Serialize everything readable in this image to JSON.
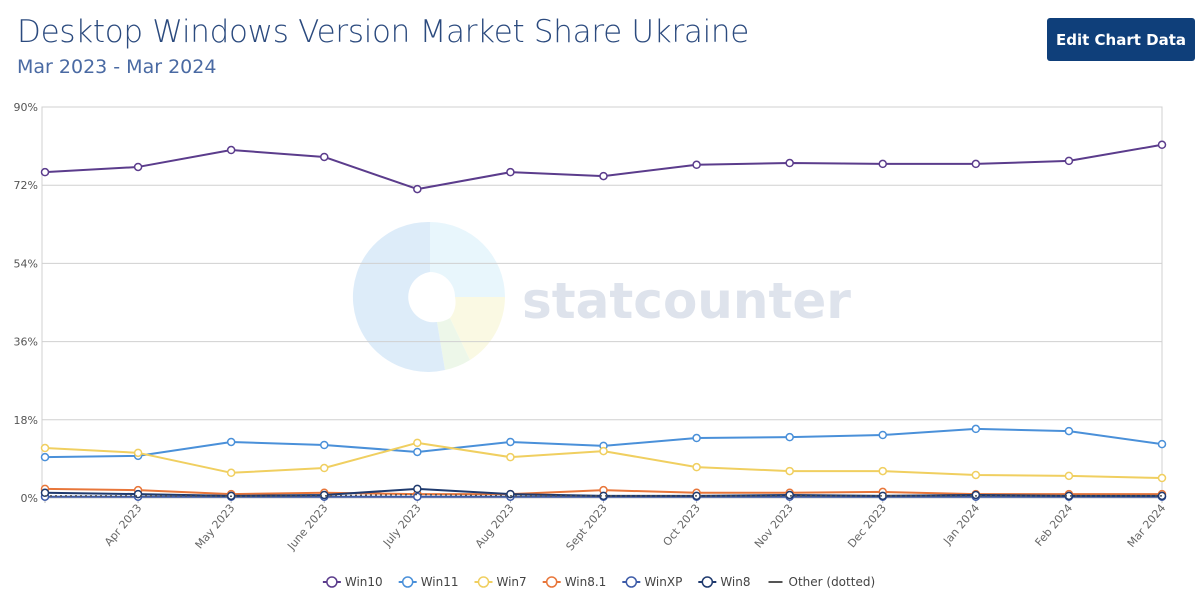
{
  "chart_data": {
    "type": "line",
    "title": "Desktop Windows Version Market Share Ukraine",
    "subtitle": "Mar 2023 - Mar 2024",
    "button": "Edit Chart Data",
    "watermark": "statcounter",
    "categories": [
      null,
      "Apr 2023",
      "May 2023",
      "June 2023",
      "July 2023",
      "Aug 2023",
      "Sept 2023",
      "Oct 2023",
      "Nov 2023",
      "Dec 2023",
      "Jan 2024",
      "Feb 2024",
      "Mar 2024"
    ],
    "ylim": [
      0,
      90
    ],
    "yticks": [
      {
        "value": 0,
        "label": "0%"
      },
      {
        "value": 18,
        "label": "18%"
      },
      {
        "value": 36,
        "label": "36%"
      },
      {
        "value": 54,
        "label": "54%"
      },
      {
        "value": 72,
        "label": "72%"
      },
      {
        "value": 90,
        "label": "90%"
      }
    ],
    "grid": true,
    "legend": "bottom",
    "series": [
      {
        "name": "Win10",
        "color": "#5b3c8c",
        "values": [
          75.0,
          76.2,
          80.1,
          78.5,
          71.1,
          75.0,
          74.1,
          76.7,
          77.1,
          76.9,
          76.9,
          77.6,
          81.3
        ]
      },
      {
        "name": "Win11",
        "color": "#4a90d9",
        "values": [
          9.4,
          9.7,
          12.9,
          12.2,
          10.6,
          12.9,
          12.0,
          13.8,
          14.0,
          14.5,
          15.9,
          15.4,
          12.4
        ]
      },
      {
        "name": "Win7",
        "color": "#f0cf60",
        "values": [
          11.5,
          10.4,
          5.8,
          6.9,
          12.7,
          9.4,
          10.8,
          7.1,
          6.2,
          6.2,
          5.3,
          5.1,
          4.6
        ]
      },
      {
        "name": "Win8.1",
        "color": "#e8763a",
        "values": [
          2.1,
          1.8,
          0.9,
          1.2,
          0.9,
          0.9,
          1.8,
          1.2,
          1.2,
          1.4,
          0.9,
          0.9,
          0.9
        ]
      },
      {
        "name": "WinXP",
        "color": "#3d5ba8",
        "values": [
          0.3,
          0.3,
          0.3,
          0.3,
          0.3,
          0.3,
          0.3,
          0.3,
          0.3,
          0.3,
          0.3,
          0.3,
          0.3
        ]
      },
      {
        "name": "Win8",
        "color": "#1f3a6e",
        "values": [
          1.2,
          0.9,
          0.5,
          0.7,
          2.1,
          0.9,
          0.5,
          0.5,
          0.7,
          0.5,
          0.7,
          0.5,
          0.5
        ]
      },
      {
        "name": "Other (dotted)",
        "color": "#555555",
        "dotted": true,
        "values": [
          0.5,
          0.5,
          0.4,
          0.5,
          0.8,
          0.5,
          0.5,
          0.5,
          0.5,
          0.5,
          0.5,
          0.5,
          0.5
        ]
      }
    ]
  }
}
